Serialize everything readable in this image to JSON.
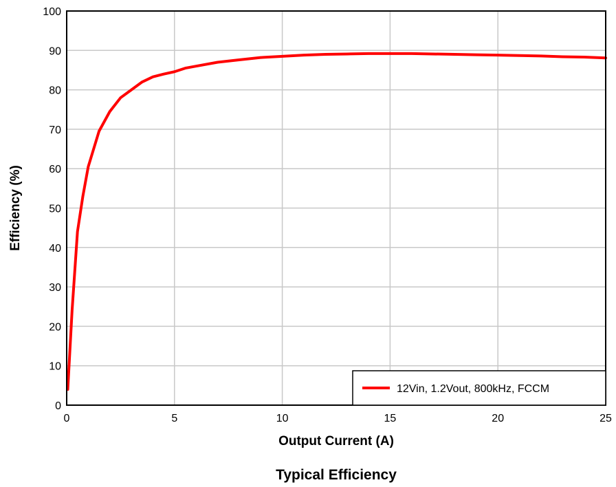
{
  "caption": "Typical Efficiency",
  "chart_data": {
    "type": "line",
    "xlabel": "Output Current (A)",
    "ylabel": "Efficiency (%)",
    "xlim": [
      0,
      25
    ],
    "ylim": [
      0,
      100
    ],
    "x_ticks": [
      0,
      5,
      10,
      15,
      20,
      25
    ],
    "y_ticks": [
      0,
      10,
      20,
      30,
      40,
      50,
      60,
      70,
      80,
      90,
      100
    ],
    "grid": true,
    "legend_position": "bottom-right",
    "series": [
      {
        "name": "12Vin, 1.2Vout, 800kHz, FCCM",
        "color": "#ff0000",
        "x": [
          0.05,
          0.25,
          0.5,
          0.75,
          1.0,
          1.5,
          2.0,
          2.5,
          3.0,
          3.5,
          4.0,
          4.5,
          5.0,
          5.5,
          6.0,
          7.0,
          8.0,
          9.0,
          10.0,
          11.0,
          12.0,
          13.0,
          14.0,
          15.0,
          16.0,
          17.0,
          18.0,
          19.0,
          20.0,
          21.0,
          22.0,
          23.0,
          24.0,
          25.0
        ],
        "y": [
          4,
          24,
          44,
          53,
          60.5,
          69.5,
          74.5,
          78,
          80,
          82,
          83.3,
          84,
          84.6,
          85.5,
          86,
          87,
          87.6,
          88.2,
          88.5,
          88.8,
          89,
          89.1,
          89.2,
          89.2,
          89.2,
          89.1,
          89,
          88.9,
          88.8,
          88.7,
          88.6,
          88.4,
          88.3,
          88.1
        ]
      }
    ]
  }
}
